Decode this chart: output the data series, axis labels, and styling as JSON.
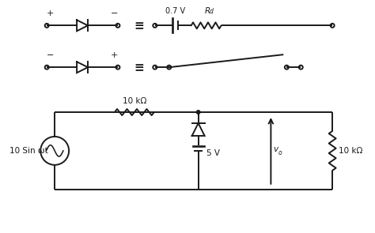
{
  "bg_color": "#ffffff",
  "line_color": "#1a1a1a",
  "line_width": 1.4,
  "fig_width": 4.74,
  "fig_height": 2.95,
  "dpi": 100,
  "equiv_symbol": "≡",
  "voltage_label": "0.7 V",
  "rd_label": "R",
  "rd_sub": "d",
  "resistor_top_label": "10 kΩ",
  "source_label": "10 Sin ωt",
  "diode_bottom_label": "5 V",
  "resistor_right_label": "10 kΩ",
  "vo_label": "v",
  "vo_sub": "o",
  "plus": "+",
  "minus": "−"
}
